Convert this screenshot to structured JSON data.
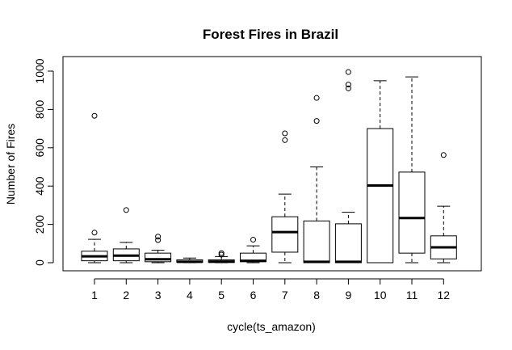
{
  "chart_data": {
    "type": "boxplot",
    "title": "Forest Fires in Brazil",
    "xlabel": "cycle(ts_amazon)",
    "ylabel": "Number of Fires",
    "ylim": [
      0,
      1000
    ],
    "yticks": [
      "0",
      "200",
      "400",
      "600",
      "800",
      "1000"
    ],
    "categories": [
      "1",
      "2",
      "3",
      "4",
      "5",
      "6",
      "7",
      "8",
      "9",
      "10",
      "11",
      "12"
    ],
    "boxes": [
      {
        "whisker_low": 0,
        "q1": 10,
        "median": 33,
        "q3": 60,
        "whisker_high": 122,
        "outliers": [
          157,
          767
        ]
      },
      {
        "whisker_low": 0,
        "q1": 10,
        "median": 37,
        "q3": 72,
        "whisker_high": 106,
        "outliers": [
          275
        ]
      },
      {
        "whisker_low": 0,
        "q1": 5,
        "median": 18,
        "q3": 50,
        "whisker_high": 65,
        "outliers": [
          118,
          136
        ]
      },
      {
        "whisker_low": 0,
        "q1": 2,
        "median": 5,
        "q3": 15,
        "whisker_high": 24,
        "outliers": []
      },
      {
        "whisker_low": 0,
        "q1": 1,
        "median": 6,
        "q3": 15,
        "whisker_high": 32,
        "outliers": [
          42,
          50
        ]
      },
      {
        "whisker_low": 0,
        "q1": 5,
        "median": 10,
        "q3": 50,
        "whisker_high": 88,
        "outliers": [
          120
        ]
      },
      {
        "whisker_low": 0,
        "q1": 55,
        "median": 160,
        "q3": 240,
        "whisker_high": 358,
        "outliers": [
          640,
          675
        ]
      },
      {
        "whisker_low": 0,
        "q1": 0,
        "median": 5,
        "q3": 218,
        "whisker_high": 500,
        "outliers": [
          740,
          860
        ]
      },
      {
        "whisker_low": 0,
        "q1": 0,
        "median": 5,
        "q3": 203,
        "whisker_high": 263,
        "outliers": [
          910,
          930,
          995
        ]
      },
      {
        "whisker_low": 0,
        "q1": 0,
        "median": 403,
        "q3": 700,
        "whisker_high": 950,
        "outliers": []
      },
      {
        "whisker_low": 0,
        "q1": 50,
        "median": 233,
        "q3": 473,
        "whisker_high": 970,
        "outliers": []
      },
      {
        "whisker_low": 0,
        "q1": 20,
        "median": 80,
        "q3": 140,
        "whisker_high": 295,
        "outliers": [
          562
        ]
      }
    ],
    "grid": false,
    "legend": "none"
  }
}
